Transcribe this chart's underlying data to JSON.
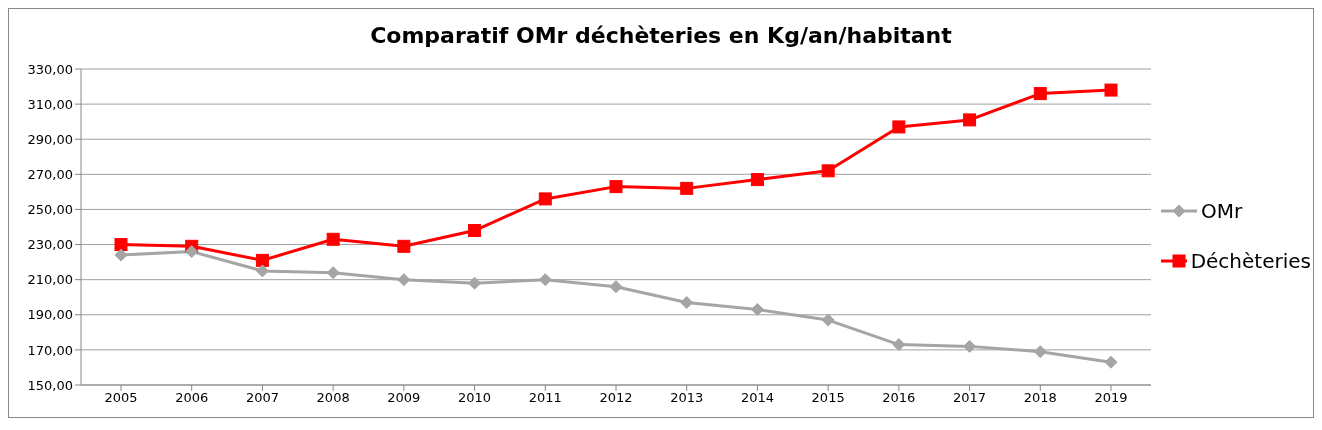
{
  "chart_data": {
    "type": "line",
    "title": "Comparatif OMr déchèteries en Kg/an/habitant",
    "categories": [
      "2005",
      "2006",
      "2007",
      "2008",
      "2009",
      "2010",
      "2011",
      "2012",
      "2013",
      "2014",
      "2015",
      "2016",
      "2017",
      "2018",
      "2019"
    ],
    "series": [
      {
        "name": "OMr",
        "color": "#a5a5a5",
        "marker": "diamond",
        "values": [
          224,
          226,
          215,
          214,
          210,
          208,
          210,
          206,
          197,
          193,
          187,
          173,
          172,
          169,
          163
        ]
      },
      {
        "name": "Déchèteries",
        "color": "#ff0000",
        "marker": "square",
        "values": [
          230,
          229,
          221,
          233,
          229,
          238,
          256,
          263,
          262,
          267,
          272,
          297,
          301,
          316,
          318
        ]
      }
    ],
    "ylim": [
      150,
      330
    ],
    "yticks": [
      {
        "value": 150,
        "label": "150,00"
      },
      {
        "value": 170,
        "label": "170,00"
      },
      {
        "value": 190,
        "label": "190,00"
      },
      {
        "value": 210,
        "label": "210,00"
      },
      {
        "value": 230,
        "label": "230,00"
      },
      {
        "value": 250,
        "label": "250,00"
      },
      {
        "value": 270,
        "label": "270,00"
      },
      {
        "value": 290,
        "label": "290,00"
      },
      {
        "value": 310,
        "label": "310,00"
      },
      {
        "value": 330,
        "label": "330,00"
      }
    ],
    "grid": "y",
    "legend": "right",
    "line_style": "solid"
  }
}
